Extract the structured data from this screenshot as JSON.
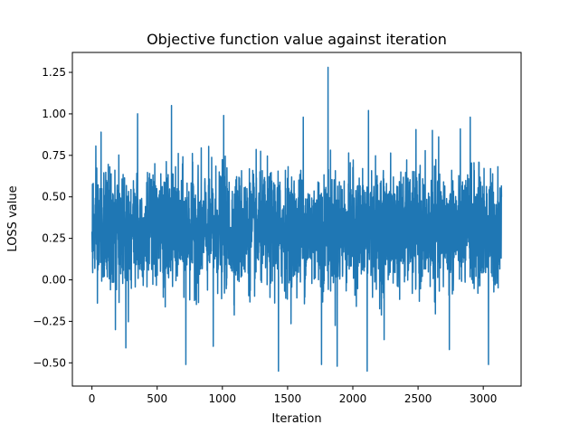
{
  "chart_data": {
    "type": "line",
    "title": "Objective function value against iteration",
    "xlabel": "Iteration",
    "ylabel": "LOSS value",
    "xlim": [
      -150,
      3290
    ],
    "ylim": [
      -0.64,
      1.37
    ],
    "x_ticks": [
      0,
      500,
      1000,
      1500,
      2000,
      2500,
      3000
    ],
    "x_tick_labels": [
      "0",
      "500",
      "1000",
      "1500",
      "2000",
      "2500",
      "3000"
    ],
    "y_ticks": [
      -0.5,
      -0.25,
      0.0,
      0.25,
      0.5,
      0.75,
      1.0,
      1.25
    ],
    "y_tick_labels": [
      "−0.50",
      "−0.25",
      "0.00",
      "0.25",
      "0.50",
      "0.75",
      "1.00",
      "1.25"
    ],
    "grid": false,
    "legend": "none",
    "series": [
      {
        "color": "#1f77b4",
        "x_range": [
          0,
          3140
        ],
        "points": 3141,
        "baseline_mean": 0.3,
        "typical_band": [
          0.0,
          0.62
        ],
        "notable_points": [
          {
            "x": 0,
            "y": 0.29
          },
          {
            "x": 42,
            "y": -0.14
          },
          {
            "x": 70,
            "y": 0.89
          },
          {
            "x": 180,
            "y": -0.3
          },
          {
            "x": 260,
            "y": -0.41
          },
          {
            "x": 350,
            "y": 1.0
          },
          {
            "x": 610,
            "y": 1.05
          },
          {
            "x": 720,
            "y": -0.51
          },
          {
            "x": 930,
            "y": -0.4
          },
          {
            "x": 1010,
            "y": 0.99
          },
          {
            "x": 1430,
            "y": -0.55
          },
          {
            "x": 1620,
            "y": 0.98
          },
          {
            "x": 1760,
            "y": -0.51
          },
          {
            "x": 1810,
            "y": 1.28
          },
          {
            "x": 1880,
            "y": -0.52
          },
          {
            "x": 2110,
            "y": -0.55
          },
          {
            "x": 2120,
            "y": 1.02
          },
          {
            "x": 2240,
            "y": -0.36
          },
          {
            "x": 2610,
            "y": 0.9
          },
          {
            "x": 2740,
            "y": -0.42
          },
          {
            "x": 2900,
            "y": 0.98
          },
          {
            "x": 3040,
            "y": -0.51
          },
          {
            "x": 3140,
            "y": 0.5
          }
        ]
      }
    ]
  }
}
